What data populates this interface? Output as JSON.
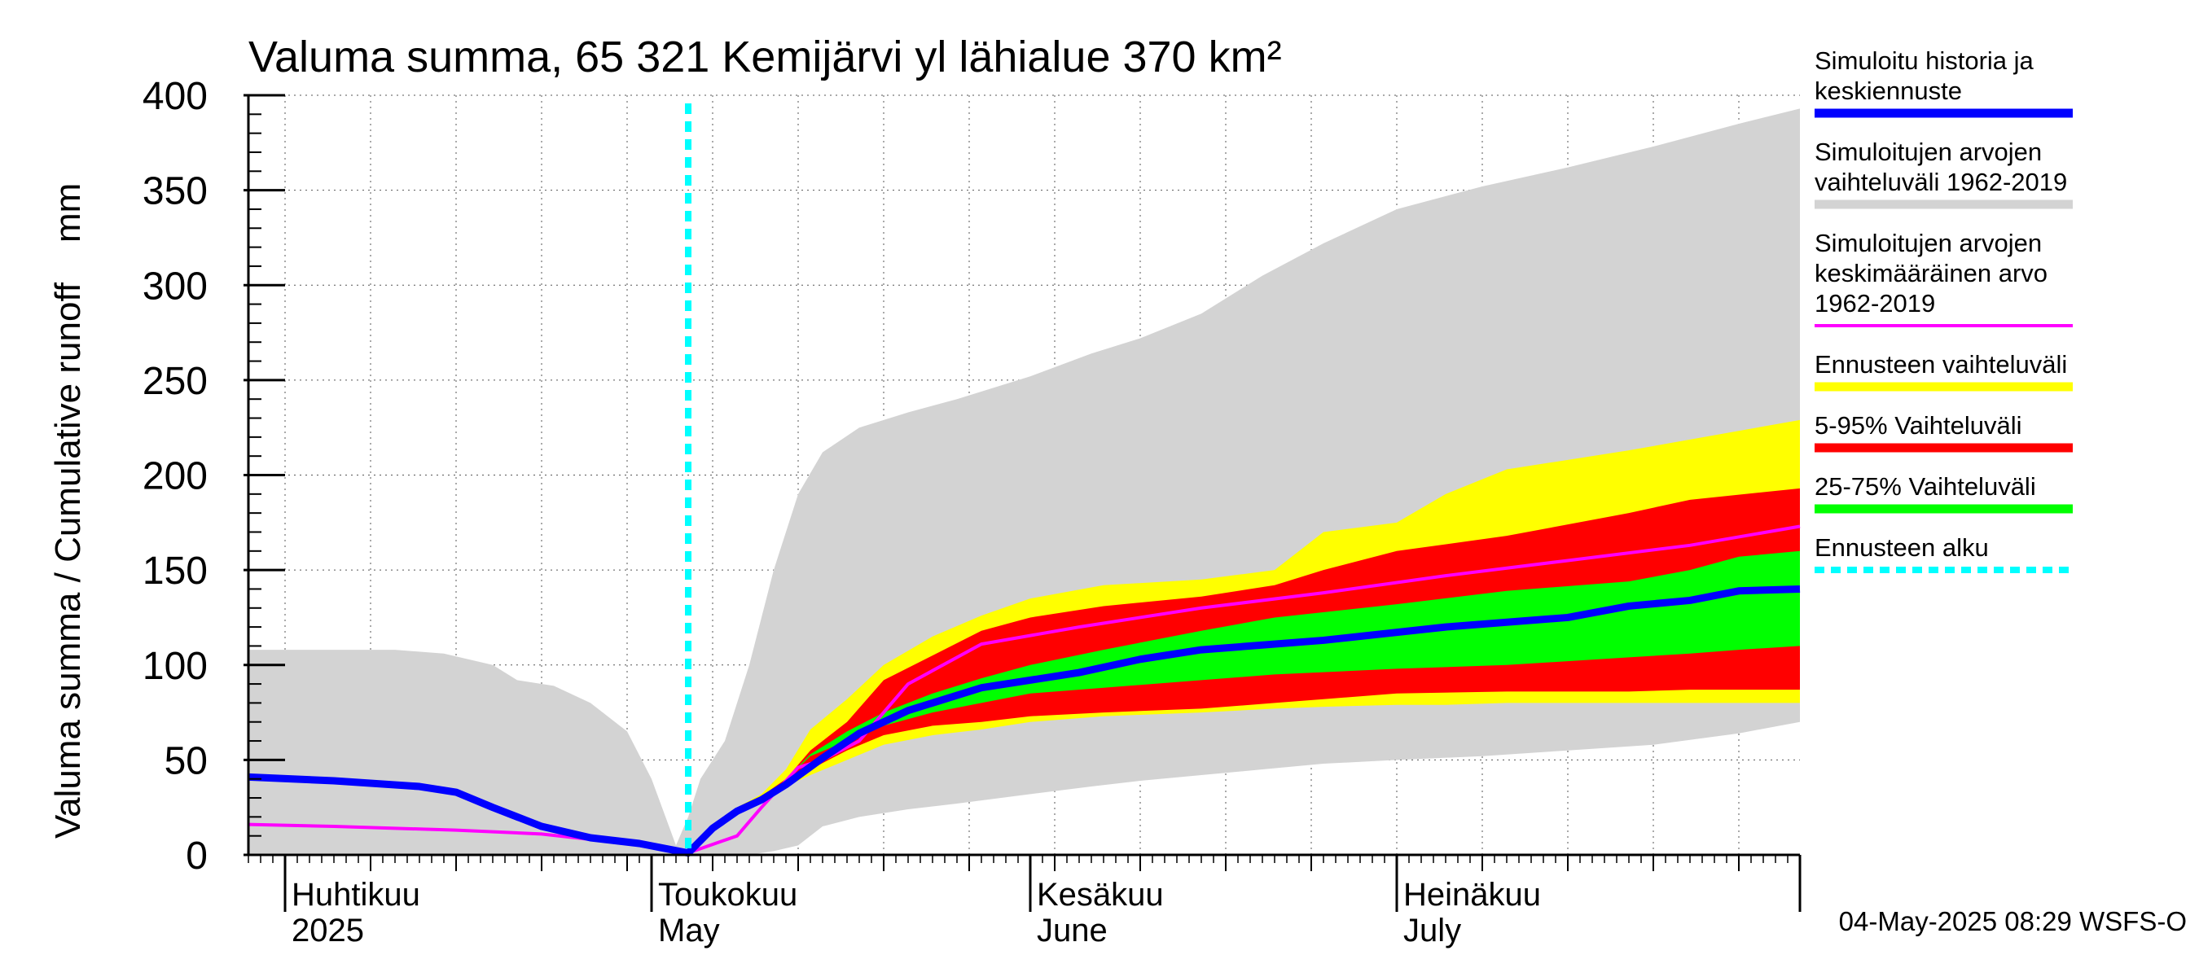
{
  "chart_data": {
    "type": "area",
    "title": "Valuma summa, 65 321 Kemijärvi yl lähialue 370 km²",
    "ylabel": "Valuma summa / Cumulative runoff    mm",
    "ylim": [
      0,
      400
    ],
    "yticks": [
      0,
      50,
      100,
      150,
      200,
      250,
      300,
      350,
      400
    ],
    "xlim": [
      "2025-03-29",
      "2025-08-03"
    ],
    "grid": true,
    "legend_position": "right",
    "month_labels": [
      {
        "date": "2025-04-01",
        "fi": "Huhtikuu",
        "en": "2025"
      },
      {
        "date": "2025-05-01",
        "fi": "Toukokuu",
        "en": "May"
      },
      {
        "date": "2025-06-01",
        "fi": "Kesäkuu",
        "en": "June"
      },
      {
        "date": "2025-07-01",
        "fi": "Heinäkuu",
        "en": "July"
      }
    ],
    "forecast_start": "2025-05-04",
    "series": [
      {
        "name": "Simuloitujen arvojen vaihteluväli 1962-2019",
        "kind": "band",
        "color": "#d3d3d3",
        "points": [
          [
            "2025-03-29",
            108,
            0
          ],
          [
            "2025-04-10",
            108,
            0
          ],
          [
            "2025-04-14",
            106,
            0
          ],
          [
            "2025-04-18",
            100,
            0
          ],
          [
            "2025-04-20",
            92,
            0
          ],
          [
            "2025-04-23",
            89,
            0
          ],
          [
            "2025-04-26",
            80,
            0
          ],
          [
            "2025-04-29",
            65,
            0
          ],
          [
            "2025-05-01",
            40,
            0
          ],
          [
            "2025-05-03",
            5,
            0
          ],
          [
            "2025-05-04",
            20,
            0
          ],
          [
            "2025-05-05",
            40,
            0
          ],
          [
            "2025-05-07",
            60,
            0
          ],
          [
            "2025-05-09",
            100,
            0
          ],
          [
            "2025-05-11",
            150,
            2
          ],
          [
            "2025-05-13",
            190,
            5
          ],
          [
            "2025-05-15",
            212,
            15
          ],
          [
            "2025-05-18",
            225,
            20
          ],
          [
            "2025-05-22",
            233,
            24
          ],
          [
            "2025-05-26",
            240,
            27
          ],
          [
            "2025-06-01",
            252,
            32
          ],
          [
            "2025-06-06",
            264,
            36
          ],
          [
            "2025-06-10",
            272,
            39
          ],
          [
            "2025-06-15",
            285,
            42
          ],
          [
            "2025-06-20",
            305,
            45
          ],
          [
            "2025-06-25",
            322,
            48
          ],
          [
            "2025-07-01",
            340,
            50
          ],
          [
            "2025-07-08",
            352,
            52
          ],
          [
            "2025-07-15",
            362,
            55
          ],
          [
            "2025-07-22",
            373,
            58
          ],
          [
            "2025-07-29",
            385,
            64
          ],
          [
            "2025-08-03",
            393,
            70
          ]
        ]
      },
      {
        "name": "Ennusteen vaihteluväli",
        "kind": "band",
        "color": "#ffff00",
        "points": [
          [
            "2025-05-04",
            2,
            2
          ],
          [
            "2025-05-06",
            16,
            14
          ],
          [
            "2025-05-08",
            25,
            22
          ],
          [
            "2025-05-10",
            32,
            28
          ],
          [
            "2025-05-12",
            45,
            36
          ],
          [
            "2025-05-14",
            66,
            42
          ],
          [
            "2025-05-17",
            82,
            50
          ],
          [
            "2025-05-20",
            100,
            58
          ],
          [
            "2025-05-24",
            115,
            63
          ],
          [
            "2025-05-28",
            126,
            66
          ],
          [
            "2025-06-01",
            135,
            70
          ],
          [
            "2025-06-07",
            142,
            73
          ],
          [
            "2025-06-15",
            145,
            75
          ],
          [
            "2025-06-21",
            150,
            77
          ],
          [
            "2025-06-25",
            170,
            78
          ],
          [
            "2025-07-01",
            175,
            79
          ],
          [
            "2025-07-05",
            190,
            79
          ],
          [
            "2025-07-10",
            203,
            80
          ],
          [
            "2025-07-20",
            213,
            80
          ],
          [
            "2025-08-03",
            229,
            80
          ]
        ]
      },
      {
        "name": "5-95% Vaihteluväli",
        "kind": "band",
        "color": "#ff0000",
        "points": [
          [
            "2025-05-04",
            2,
            2
          ],
          [
            "2025-05-06",
            16,
            15
          ],
          [
            "2025-05-08",
            25,
            23
          ],
          [
            "2025-05-10",
            31,
            29
          ],
          [
            "2025-05-12",
            40,
            38
          ],
          [
            "2025-05-14",
            55,
            45
          ],
          [
            "2025-05-17",
            70,
            55
          ],
          [
            "2025-05-20",
            92,
            63
          ],
          [
            "2025-05-24",
            105,
            68
          ],
          [
            "2025-05-28",
            118,
            70
          ],
          [
            "2025-06-01",
            125,
            73
          ],
          [
            "2025-06-07",
            131,
            75
          ],
          [
            "2025-06-15",
            136,
            77
          ],
          [
            "2025-06-21",
            142,
            80
          ],
          [
            "2025-06-25",
            150,
            82
          ],
          [
            "2025-07-01",
            160,
            85
          ],
          [
            "2025-07-10",
            168,
            86
          ],
          [
            "2025-07-20",
            180,
            86
          ],
          [
            "2025-07-25",
            187,
            87
          ],
          [
            "2025-08-03",
            193,
            87
          ]
        ]
      },
      {
        "name": "25-75% Vaihteluväli",
        "kind": "band",
        "color": "#00ff00",
        "points": [
          [
            "2025-05-04",
            2,
            2
          ],
          [
            "2025-05-06",
            15,
            15
          ],
          [
            "2025-05-08",
            24,
            24
          ],
          [
            "2025-05-10",
            30,
            30
          ],
          [
            "2025-05-12",
            40,
            40
          ],
          [
            "2025-05-14",
            53,
            52
          ],
          [
            "2025-05-17",
            65,
            60
          ],
          [
            "2025-05-20",
            75,
            68
          ],
          [
            "2025-05-24",
            85,
            75
          ],
          [
            "2025-05-28",
            93,
            80
          ],
          [
            "2025-06-01",
            100,
            85
          ],
          [
            "2025-06-07",
            108,
            88
          ],
          [
            "2025-06-15",
            118,
            92
          ],
          [
            "2025-06-21",
            125,
            95
          ],
          [
            "2025-07-01",
            132,
            98
          ],
          [
            "2025-07-10",
            139,
            100
          ],
          [
            "2025-07-20",
            144,
            104
          ],
          [
            "2025-07-25",
            150,
            106
          ],
          [
            "2025-07-29",
            157,
            108
          ],
          [
            "2025-08-03",
            160,
            110
          ]
        ]
      },
      {
        "name": "Simuloitujen arvojen keskimääräinen arvo 1962-2019",
        "kind": "line",
        "color": "#ff00ff",
        "points": [
          [
            "2025-03-29",
            16
          ],
          [
            "2025-04-05",
            15
          ],
          [
            "2025-04-15",
            13
          ],
          [
            "2025-04-22",
            11
          ],
          [
            "2025-04-29",
            6
          ],
          [
            "2025-05-04",
            1
          ],
          [
            "2025-05-08",
            10
          ],
          [
            "2025-05-10",
            25
          ],
          [
            "2025-05-13",
            46
          ],
          [
            "2025-05-15",
            50
          ],
          [
            "2025-05-18",
            60
          ],
          [
            "2025-05-20",
            75
          ],
          [
            "2025-05-22",
            90
          ],
          [
            "2025-05-28",
            111
          ],
          [
            "2025-06-05",
            120
          ],
          [
            "2025-06-15",
            130
          ],
          [
            "2025-06-25",
            138
          ],
          [
            "2025-07-05",
            147
          ],
          [
            "2025-07-15",
            155
          ],
          [
            "2025-07-25",
            163
          ],
          [
            "2025-08-03",
            173
          ]
        ]
      },
      {
        "name": "Simuloitu historia ja keskiennuste",
        "kind": "line",
        "color": "#0000ff",
        "points": [
          [
            "2025-03-29",
            41
          ],
          [
            "2025-04-05",
            39
          ],
          [
            "2025-04-12",
            36
          ],
          [
            "2025-04-15",
            33
          ],
          [
            "2025-04-18",
            25
          ],
          [
            "2025-04-22",
            15
          ],
          [
            "2025-04-26",
            9
          ],
          [
            "2025-04-30",
            6
          ],
          [
            "2025-05-04",
            1
          ],
          [
            "2025-05-06",
            14
          ],
          [
            "2025-05-08",
            23
          ],
          [
            "2025-05-10",
            29
          ],
          [
            "2025-05-12",
            37
          ],
          [
            "2025-05-15",
            51
          ],
          [
            "2025-05-18",
            64
          ],
          [
            "2025-05-22",
            76
          ],
          [
            "2025-05-28",
            88
          ],
          [
            "2025-06-05",
            96
          ],
          [
            "2025-06-10",
            103
          ],
          [
            "2025-06-15",
            108
          ],
          [
            "2025-06-25",
            113
          ],
          [
            "2025-07-05",
            120
          ],
          [
            "2025-07-15",
            125
          ],
          [
            "2025-07-20",
            131
          ],
          [
            "2025-07-25",
            134
          ],
          [
            "2025-07-29",
            139
          ],
          [
            "2025-08-03",
            140
          ]
        ]
      },
      {
        "name": "Ennusteen alku",
        "kind": "vline",
        "color": "#00ffff"
      }
    ]
  },
  "legend": [
    {
      "lines": [
        "Simuloitu historia ja",
        "keskiennuste"
      ],
      "color": "#0000ff",
      "style": "solid"
    },
    {
      "lines": [
        "Simuloitujen arvojen",
        "vaihteluväli 1962-2019"
      ],
      "color": "#d3d3d3",
      "style": "solid"
    },
    {
      "lines": [
        "Simuloitujen arvojen",
        "keskimääräinen arvo",
        "   1962-2019"
      ],
      "color": "#ff00ff",
      "style": "thin"
    },
    {
      "lines": [
        "Ennusteen vaihteluväli"
      ],
      "color": "#ffff00",
      "style": "solid"
    },
    {
      "lines": [
        "5-95% Vaihteluväli"
      ],
      "color": "#ff0000",
      "style": "solid"
    },
    {
      "lines": [
        "25-75% Vaihteluväli"
      ],
      "color": "#00ff00",
      "style": "solid"
    },
    {
      "lines": [
        "Ennusteen alku"
      ],
      "color": "#00ffff",
      "style": "dotted"
    }
  ],
  "timestamp": "04-May-2025 08:29 WSFS-O"
}
